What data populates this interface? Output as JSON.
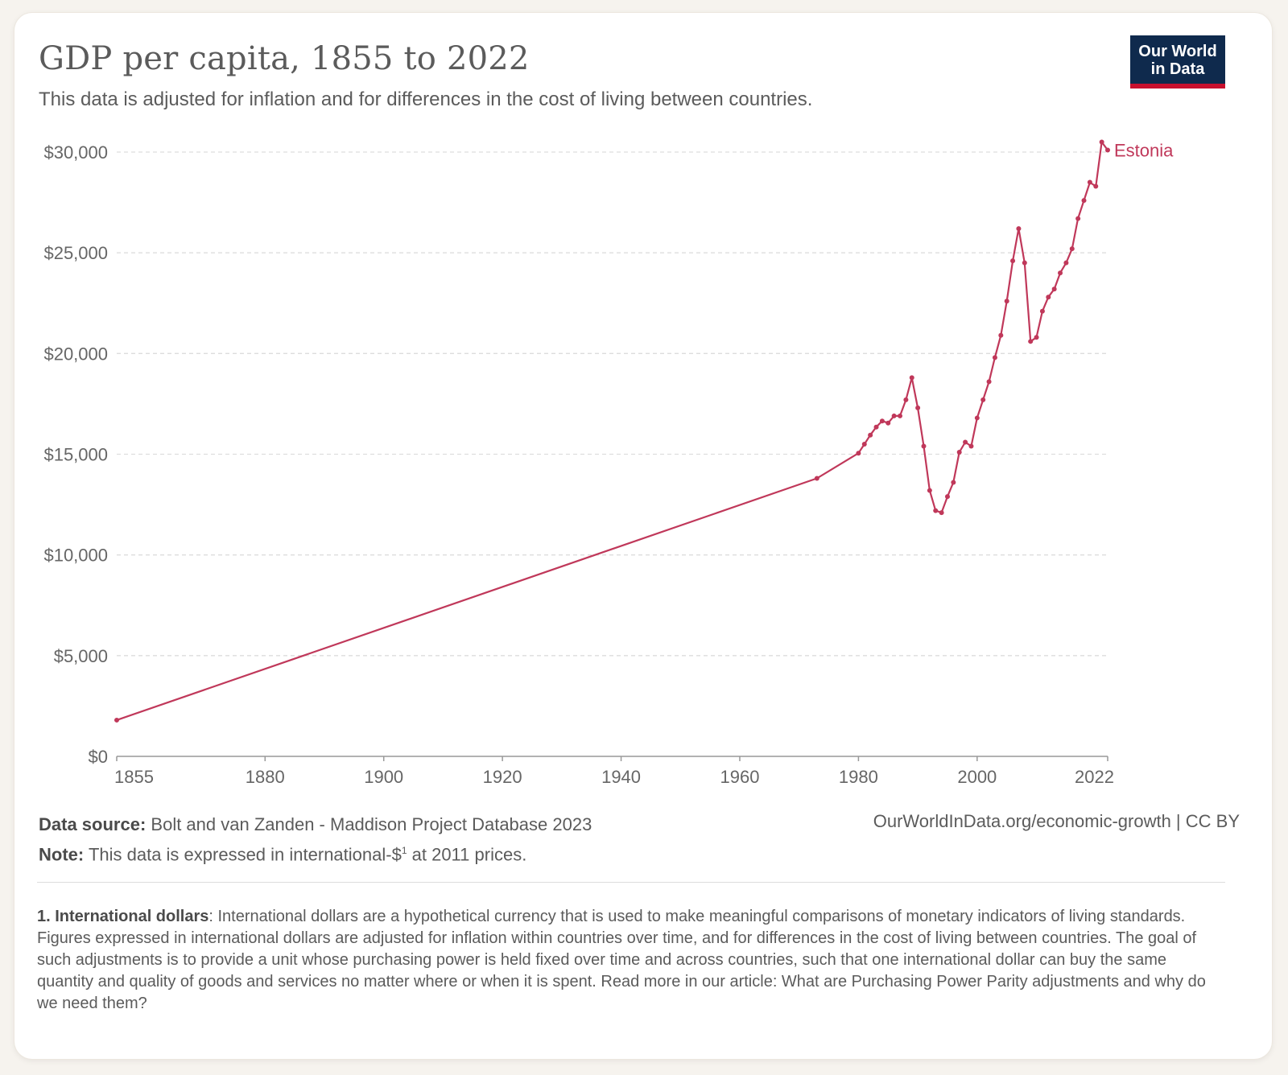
{
  "header": {
    "title": "GDP per capita, 1855 to 2022",
    "subtitle": "This data is adjusted for inflation and for differences in the cost of living between countries.",
    "logo_line1": "Our World",
    "logo_line2": "in Data"
  },
  "footer": {
    "source_label": "Data source:",
    "source_text": "Bolt and van Zanden - Maddison Project Database 2023",
    "note_label": "Note:",
    "note_text_before": "This data is expressed in international-$",
    "note_sup": "1",
    "note_text_after": " at 2011 prices.",
    "site": "OurWorldInData.org/economic-growth | CC BY",
    "footnote_label": "1. International dollars",
    "footnote_text": ": International dollars are a hypothetical currency that is used to make meaningful comparisons of monetary indicators of living standards. Figures expressed in international dollars are adjusted for inflation within countries over time, and for differences in the cost of living between countries. The goal of such adjustments is to provide a unit whose purchasing power is held fixed over time and across countries, such that one international dollar can buy the same quantity and quality of goods and services no matter where or when it is spent. Read more in our article: What are Purchasing Power Parity adjustments and why do we need them?"
  },
  "colors": {
    "series": "#c0385a",
    "grid": "#dddddd",
    "axis": "#999999"
  },
  "chart_data": {
    "type": "line",
    "title": "GDP per capita, 1855 to 2022",
    "xlabel": "",
    "ylabel": "",
    "xlim": [
      1855,
      2022
    ],
    "ylim": [
      0,
      30000
    ],
    "grid": true,
    "x_ticks": [
      1855,
      1880,
      1900,
      1920,
      1940,
      1960,
      1980,
      2000,
      2022
    ],
    "y_ticks": [
      0,
      5000,
      10000,
      15000,
      20000,
      25000,
      30000
    ],
    "y_tick_labels": [
      "$0",
      "$5,000",
      "$10,000",
      "$15,000",
      "$20,000",
      "$25,000",
      "$30,000"
    ],
    "series": [
      {
        "name": "Estonia",
        "x": [
          1855,
          1973,
          1980,
          1981,
          1982,
          1983,
          1984,
          1985,
          1986,
          1987,
          1988,
          1989,
          1990,
          1991,
          1992,
          1993,
          1994,
          1995,
          1996,
          1997,
          1998,
          1999,
          2000,
          2001,
          2002,
          2003,
          2004,
          2005,
          2006,
          2007,
          2008,
          2009,
          2010,
          2011,
          2012,
          2013,
          2014,
          2015,
          2016,
          2017,
          2018,
          2019,
          2020,
          2021,
          2022
        ],
        "values": [
          1800,
          13800,
          15050,
          15500,
          15950,
          16350,
          16650,
          16550,
          16900,
          16900,
          17700,
          18800,
          17300,
          15400,
          13200,
          12200,
          12100,
          12900,
          13600,
          15100,
          15600,
          15400,
          16800,
          17700,
          18600,
          19800,
          20900,
          22600,
          24600,
          26200,
          24500,
          20600,
          20800,
          22100,
          22800,
          23200,
          24000,
          24500,
          25200,
          26700,
          27600,
          28500,
          28300,
          30500,
          30100
        ]
      }
    ]
  }
}
